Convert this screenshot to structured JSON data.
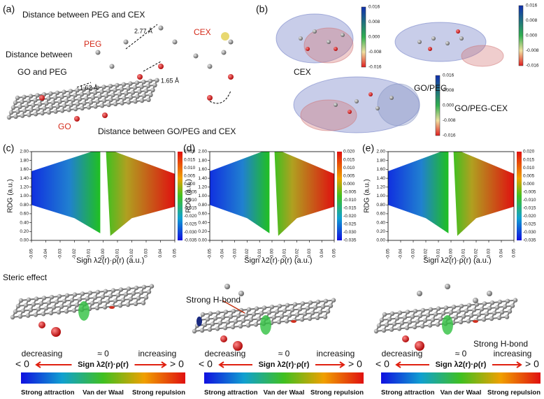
{
  "panel_labels": [
    "(a)",
    "(b)",
    "(c)",
    "(d)",
    "(e)"
  ],
  "panel_a": {
    "peg_cex_distance": "Distance between PEG and CEX",
    "d1": "2.77 Å",
    "cex": "CEX",
    "peg": "PEG",
    "d2": "1.65 Å",
    "go_peg_distance_1": "Distance between",
    "go_peg_distance_2": "GO and PEG",
    "d3": "1.62 Å",
    "go": "GO",
    "go_peg_cex_distance": "Distance between GO/PEG and CEX"
  },
  "panel_b": {
    "molecules": [
      "CEX",
      "GO/PEG",
      "GO/PEG-CEX"
    ],
    "colorbar_ticks": [
      "0.016",
      "0.008",
      "0.000",
      "-0.008",
      "-0.016"
    ]
  },
  "rdg_plot": {
    "y_label": "RDG (a.u.)",
    "x_label": "Sign λ2(r)·ρ(r)    (a.u.)",
    "yticks": [
      "2.00",
      "1.80",
      "1.60",
      "1.40",
      "1.20",
      "1.00",
      "0.80",
      "0.60",
      "0.40",
      "0.20",
      "0.00"
    ],
    "xticks": [
      "-0.05",
      "-0.04",
      "-0.03",
      "-0.02",
      "-0.01",
      "0.00",
      "0.01",
      "0.02",
      "0.03",
      "0.04",
      "0.05"
    ],
    "colorbar_ticks": [
      "0.020",
      "0.015",
      "0.010",
      "0.005",
      "0.000",
      "-0.005",
      "-0.010",
      "-0.015",
      "-0.020",
      "-0.025",
      "-0.030",
      "-0.035"
    ]
  },
  "iso_annotations": [
    "Steric effect",
    "Strong H-bond",
    "Strong H-bond"
  ],
  "scale": {
    "trend": [
      "decreasing",
      "≈ 0",
      "increasing"
    ],
    "sign": [
      "< 0",
      "Sign λ2(r)·ρ(r)",
      "> 0"
    ],
    "interactions": [
      "Strong attraction",
      "Van der Waal",
      "Strong repulsion"
    ]
  }
}
